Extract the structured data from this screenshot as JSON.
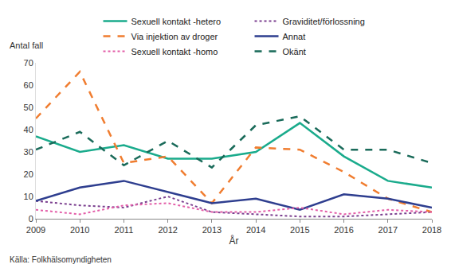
{
  "chart_data": {
    "type": "line",
    "x_label": "År",
    "y_label": "Antal fall",
    "source": "Källa: Folkhälsomyndigheten",
    "x": [
      2009,
      2010,
      2011,
      2012,
      2013,
      2014,
      2015,
      2016,
      2017,
      2018
    ],
    "xlim": [
      2009,
      2018
    ],
    "xticks": [
      2009,
      2010,
      2011,
      2012,
      2013,
      2014,
      2015,
      2016,
      2017,
      2018
    ],
    "ylim": [
      0,
      70
    ],
    "yticks": [
      0,
      10,
      20,
      30,
      40,
      50,
      60,
      70
    ],
    "grid": false,
    "legend": "top",
    "series": [
      {
        "name": "Sexuell kontakt -hetero",
        "color": "#1aab8c",
        "line_style": "solid",
        "values": [
          37,
          30,
          33,
          27,
          27,
          30,
          43,
          28,
          17,
          14
        ]
      },
      {
        "name": "Graviditet/förlossning",
        "color": "#7b3f8f",
        "line_style": "dot",
        "values": [
          8,
          6,
          5,
          10,
          3,
          2,
          1,
          1,
          2,
          3
        ]
      },
      {
        "name": "Via injektion av droger",
        "color": "#f07d30",
        "line_style": "dash",
        "values": [
          45,
          66,
          25,
          28,
          7,
          32,
          31,
          21,
          9,
          3
        ]
      },
      {
        "name": "Annat",
        "color": "#2e3e8f",
        "line_style": "solid",
        "values": [
          8,
          14,
          17,
          12,
          7,
          9,
          4,
          11,
          9,
          5
        ]
      },
      {
        "name": "Sexuell kontakt -homo",
        "color": "#e35ea8",
        "line_style": "dot",
        "values": [
          4,
          2,
          6,
          7,
          3,
          3,
          5,
          2,
          4,
          3
        ]
      },
      {
        "name": "Okänt",
        "color": "#1a6b5a",
        "line_style": "dash",
        "values": [
          31,
          39,
          24,
          35,
          23,
          42,
          46,
          31,
          31,
          25
        ]
      }
    ]
  }
}
